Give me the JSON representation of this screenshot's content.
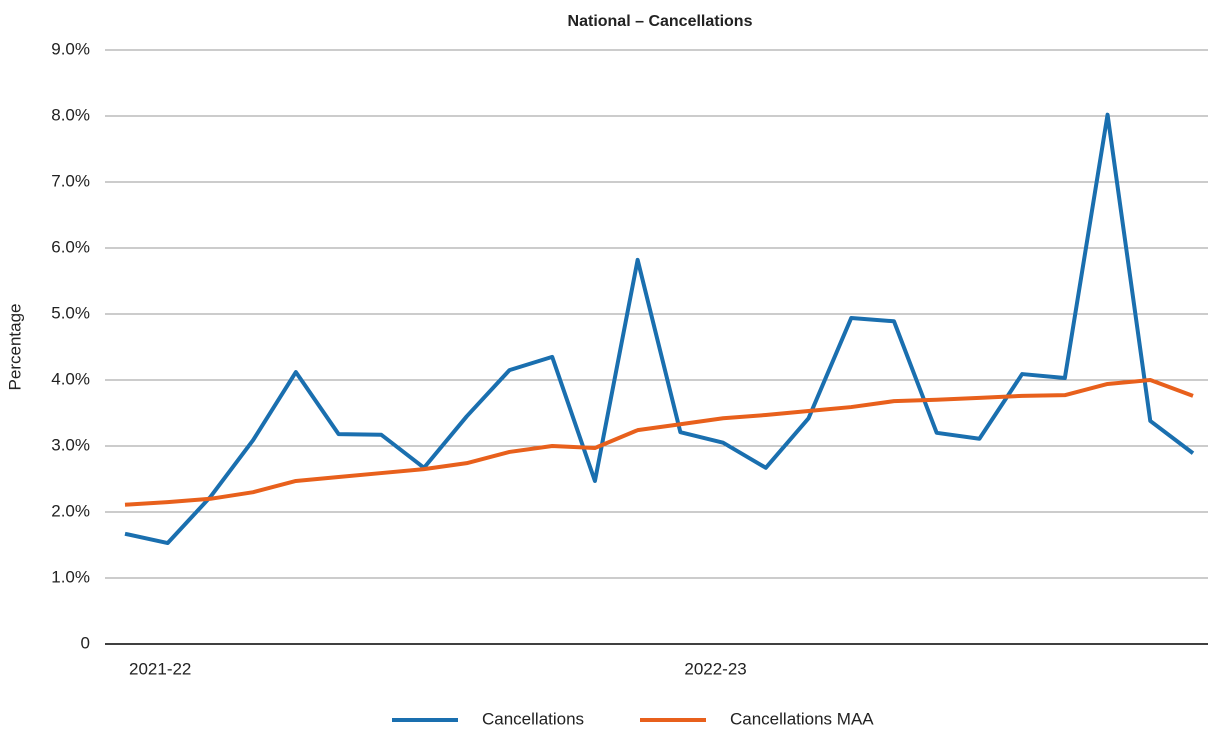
{
  "chart_data": {
    "type": "line",
    "title": "National – Cancellations",
    "y_label": "Percentage",
    "categories": [
      "2021-22",
      null,
      null,
      null,
      null,
      null,
      null,
      null,
      null,
      null,
      null,
      null,
      null,
      "2022-23",
      null,
      null,
      null,
      null,
      null,
      null,
      null,
      null,
      null,
      null,
      null,
      null
    ],
    "series": [
      {
        "name": "Cancellations",
        "color": "#1a6faf",
        "values": [
          1.67,
          1.53,
          2.23,
          3.09,
          4.12,
          3.18,
          3.17,
          2.67,
          3.45,
          4.15,
          4.35,
          2.47,
          5.82,
          3.21,
          3.05,
          2.67,
          3.42,
          4.94,
          4.89,
          3.2,
          3.11,
          4.09,
          4.03,
          8.02,
          3.38,
          2.89
        ]
      },
      {
        "name": "Cancellations MAA",
        "color": "#e8601c",
        "values": [
          2.11,
          2.15,
          2.2,
          2.3,
          2.47,
          2.53,
          2.59,
          2.65,
          2.74,
          2.91,
          3.0,
          2.97,
          3.24,
          3.33,
          3.42,
          3.47,
          3.53,
          3.59,
          3.68,
          3.7,
          3.73,
          3.76,
          3.77,
          3.94,
          4.0,
          3.76
        ]
      }
    ],
    "ylim": [
      0,
      9
    ],
    "yticks": [
      0,
      {
        "value": 1,
        "label": "1.0%"
      },
      {
        "value": 2,
        "label": "2.0%"
      },
      {
        "value": 3,
        "label": "3.0%"
      },
      {
        "value": 4,
        "label": "4.0%"
      },
      {
        "value": 5,
        "label": "5.0%"
      },
      {
        "value": 6,
        "label": "6.0%"
      },
      {
        "value": 7,
        "label": "7.0%"
      },
      {
        "value": 8,
        "label": "8.0%"
      },
      {
        "value": 9,
        "label": "9.0%"
      }
    ],
    "grid": true,
    "legend": "bottom"
  }
}
